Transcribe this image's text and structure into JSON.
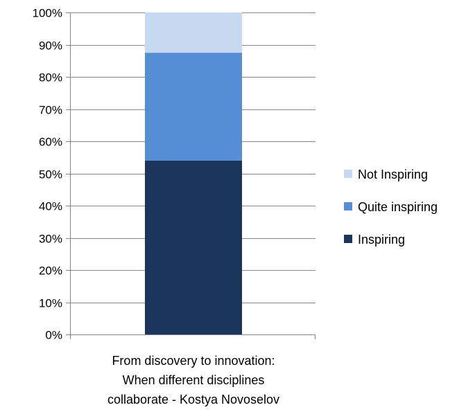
{
  "chart_data": {
    "type": "bar",
    "stacked": true,
    "percent": true,
    "categories": [
      "From discovery to innovation: When different disciplines collaborate - Kostya Novoselov"
    ],
    "category_label_lines": [
      "From discovery to innovation:",
      "When different disciplines",
      "collaborate - Kostya Novoselov"
    ],
    "series": [
      {
        "name": "Inspiring",
        "values": [
          54
        ],
        "color": "#1b365d"
      },
      {
        "name": "Quite inspiring",
        "values": [
          33.5
        ],
        "color": "#558ed5"
      },
      {
        "name": "Not Inspiring",
        "values": [
          12.5
        ],
        "color": "#c6d9f1"
      }
    ],
    "ylim": [
      0,
      100
    ],
    "yticks": [
      "0%",
      "10%",
      "20%",
      "30%",
      "40%",
      "50%",
      "60%",
      "70%",
      "80%",
      "90%",
      "100%"
    ],
    "grid": true,
    "legend_position": "right",
    "legend_order": [
      "Not Inspiring",
      "Quite inspiring",
      "Inspiring"
    ],
    "title": "",
    "xlabel": "",
    "ylabel": ""
  }
}
